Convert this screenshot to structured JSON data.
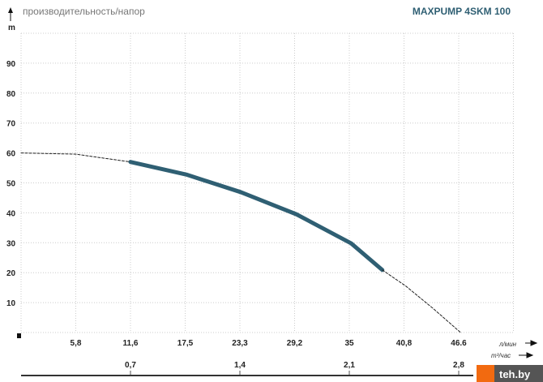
{
  "chart_data": {
    "type": "line",
    "title": "производительность/напор",
    "model": "MAXPUMP 4SKM 100",
    "ylabel": "m",
    "xlabel": "л/мин",
    "x2label": "m³/час",
    "ylim": [
      0,
      100
    ],
    "xlim": [
      0,
      52.2
    ],
    "grid": true,
    "yticks": [
      10,
      20,
      30,
      40,
      50,
      60,
      70,
      80,
      90
    ],
    "xticks": [
      "5,8",
      "11,6",
      "17,5",
      "23,3",
      "29,2",
      "35",
      "40,8",
      "46.6"
    ],
    "x2ticks": [
      "0,7",
      "1,4",
      "2,1",
      "2,8"
    ],
    "series": [
      {
        "style": "dashed",
        "color": "#222222",
        "x": [
          0,
          5.8,
          11.6
        ],
        "y": [
          60,
          59.6,
          57
        ]
      },
      {
        "style": "solid",
        "color": "#2f5f73",
        "x": [
          11.6,
          17.5,
          23.3,
          29.2,
          35,
          38.3
        ],
        "y": [
          57,
          52.8,
          46.9,
          39.5,
          29.8,
          20.9
        ]
      },
      {
        "style": "dashed",
        "color": "#222222",
        "x": [
          38.3,
          40.8,
          43.7,
          46.6
        ],
        "y": [
          20.9,
          15.5,
          8,
          0
        ]
      }
    ]
  },
  "watermark": "teh.by"
}
